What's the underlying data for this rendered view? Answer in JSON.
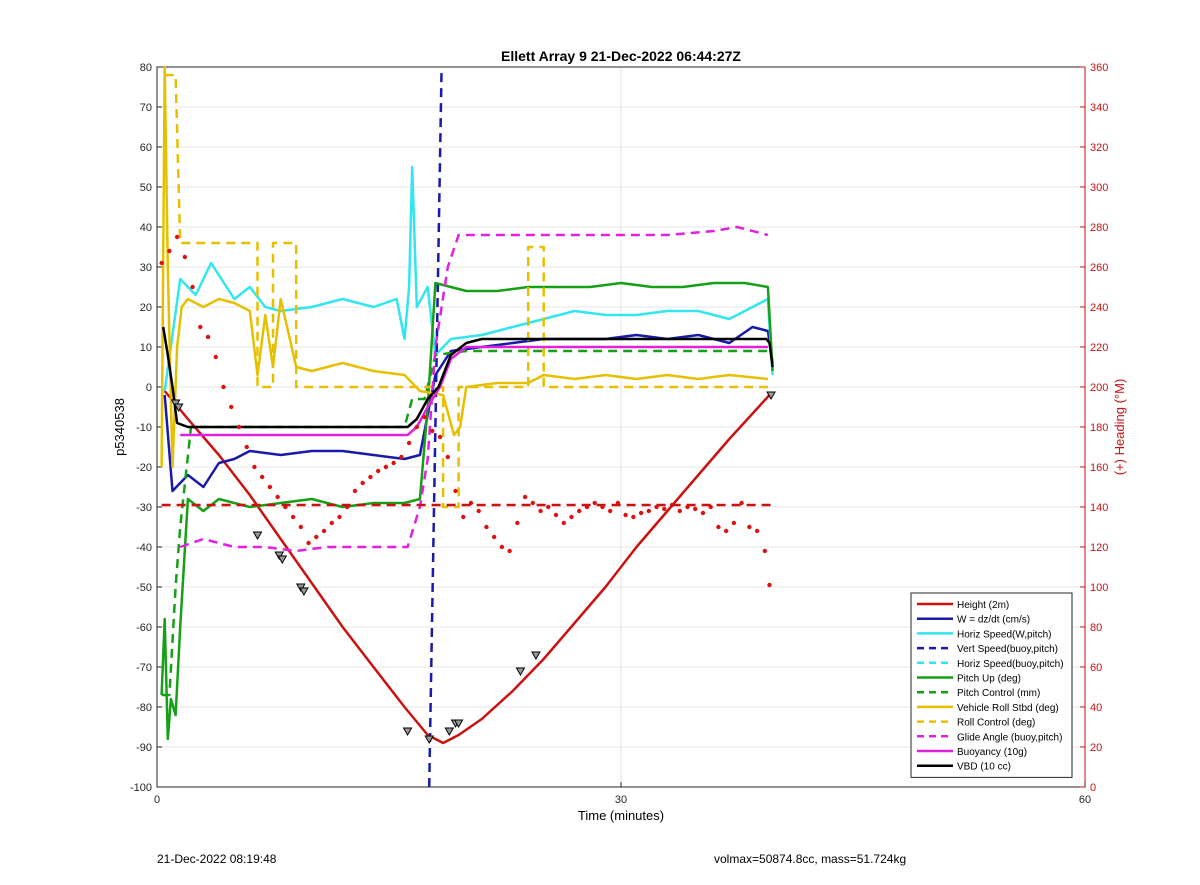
{
  "chart_data": {
    "type": "line",
    "title": "Ellett Array 9 21-Dec-2022 06:44:27Z",
    "xlabel": "Time (minutes)",
    "ylabel": "p5340538",
    "y2label": "(+) Heading (°M)",
    "xlim": [
      0,
      60
    ],
    "ylim": [
      -100,
      80
    ],
    "y2lim": [
      0,
      360
    ],
    "x_ticks": [
      "0",
      "30",
      "60"
    ],
    "y_ticks": [
      "-100",
      "-90",
      "-80",
      "-70",
      "-60",
      "-50",
      "-40",
      "-30",
      "-20",
      "-10",
      "0",
      "10",
      "20",
      "30",
      "40",
      "50",
      "60",
      "70",
      "80"
    ],
    "y2_ticks": [
      "0",
      "20",
      "40",
      "60",
      "80",
      "100",
      "120",
      "140",
      "160",
      "180",
      "200",
      "220",
      "240",
      "260",
      "280",
      "300",
      "320",
      "340",
      "360"
    ],
    "grid": true,
    "legend_position": "bottom-right",
    "series": [
      {
        "name": "Height (2m)",
        "color": "#cc1111",
        "style": "solid",
        "x": [
          0.5,
          2,
          4,
          6,
          8,
          10,
          12,
          14,
          16,
          17.5,
          18.5,
          19.5,
          21,
          23,
          25,
          27,
          29,
          31,
          33,
          35,
          37,
          39.6
        ],
        "y": [
          -1,
          -8,
          -17,
          -27,
          -38,
          -49,
          -60,
          -70,
          -80,
          -87,
          -89,
          -87,
          -83,
          -76,
          -68,
          -59,
          -50,
          -40,
          -31,
          -22,
          -13,
          -2
        ]
      },
      {
        "name": "W = dz/dt (cm/s)",
        "color": "#1a1aaa",
        "style": "solid",
        "x": [
          0.5,
          1,
          2,
          3,
          4,
          5,
          6,
          8,
          10,
          12,
          14,
          16,
          17,
          18,
          19,
          21,
          23,
          25,
          27,
          29,
          31,
          33,
          35,
          37,
          38.5,
          39.5,
          39.8
        ],
        "y": [
          -2,
          -26,
          -22,
          -25,
          -19,
          -18,
          -16,
          -17,
          -16,
          -16,
          -17,
          -18,
          -17,
          3,
          9,
          10,
          11,
          12,
          12,
          12,
          13,
          12,
          13,
          11,
          15,
          14,
          6
        ]
      },
      {
        "name": "Horiz Speed(W,pitch)",
        "color": "#33e5ee",
        "style": "solid",
        "x": [
          0.5,
          1.5,
          2.5,
          3.5,
          5,
          6,
          7,
          8,
          10,
          12,
          14,
          15.5,
          16,
          16.3,
          16.5,
          16.8,
          17.5,
          18,
          19,
          21,
          23,
          25,
          27,
          29,
          31,
          33,
          35,
          37,
          38.5,
          39.5,
          39.8
        ],
        "y": [
          -1,
          27,
          23,
          31,
          22,
          25,
          20,
          19,
          20,
          22,
          20,
          22,
          12,
          25,
          55,
          20,
          25,
          8,
          12,
          13,
          15,
          17,
          19,
          18,
          18,
          19,
          19,
          17,
          20,
          22,
          3
        ]
      },
      {
        "name": "Vert Speed(buoy,pitch)",
        "color": "#1a1aaa",
        "style": "dashed",
        "x": [
          17.6,
          18.4
        ],
        "y": [
          -100,
          80
        ]
      },
      {
        "name": "Horiz Speed(buoy,pitch)",
        "color": "#33e5ee",
        "style": "dashed",
        "x": [],
        "y": []
      },
      {
        "name": "Pitch Up (deg)",
        "color": "#16a016",
        "style": "solid",
        "x": [
          0.3,
          0.5,
          0.7,
          0.9,
          1.2,
          1.5,
          2,
          3,
          4,
          6,
          8,
          10,
          12,
          14,
          16,
          17,
          17.5,
          18,
          20,
          22,
          24,
          26,
          28,
          30,
          32,
          34,
          36,
          38,
          39.5,
          39.8
        ],
        "y": [
          -77,
          -58,
          -88,
          -78,
          -82,
          -60,
          -28,
          -31,
          -28,
          -30,
          -29,
          -28,
          -30,
          -29,
          -29,
          -28,
          -5,
          26,
          24,
          24,
          25,
          25,
          25,
          26,
          25,
          25,
          26,
          26,
          25,
          4
        ]
      },
      {
        "name": "Pitch Control (mm)",
        "color": "#16a016",
        "style": "dashed",
        "x": [
          0.3,
          0.8,
          1.2,
          1.5,
          2.2,
          4,
          8,
          12,
          16,
          16.5,
          17.3,
          18,
          20,
          25,
          30,
          35,
          39.5
        ],
        "y": [
          -77,
          -77,
          -50,
          -35,
          -10,
          -10,
          -10,
          -10,
          -10,
          -3,
          -3,
          8,
          9,
          9,
          9,
          9,
          9
        ]
      },
      {
        "name": "Vehicle Roll Stbd (deg)",
        "color": "#e6c000",
        "style": "solid",
        "x": [
          0.3,
          0.5,
          0.7,
          1,
          1.3,
          1.6,
          2,
          3,
          4,
          5,
          6,
          6.5,
          7,
          7.5,
          8,
          9,
          10,
          12,
          14,
          16,
          17,
          18.5,
          19.2,
          19.6,
          20,
          22,
          24,
          25,
          27,
          29,
          31,
          33,
          35,
          37,
          39.5
        ],
        "y": [
          -20,
          80,
          30,
          -20,
          10,
          20,
          22,
          20,
          22,
          21,
          19,
          3,
          18,
          5,
          22,
          5,
          4,
          6,
          4,
          3,
          -1,
          -2,
          -12,
          -10,
          0,
          1,
          1,
          3,
          2,
          3,
          2,
          3,
          2,
          3,
          2
        ]
      },
      {
        "name": "Roll Control (deg)",
        "color": "#e6c000",
        "style": "dashed",
        "x": [
          0.5,
          1.2,
          1.5,
          6.5,
          6.5,
          7.5,
          7.5,
          9,
          9,
          14,
          16,
          18.5,
          18.5,
          19.5,
          19.5,
          24,
          24,
          25,
          25,
          35,
          39.5
        ],
        "y": [
          78,
          78,
          36,
          36,
          0,
          0,
          36,
          36,
          0,
          0,
          0,
          0,
          -30,
          -30,
          0,
          0,
          35,
          35,
          0,
          0,
          0
        ]
      },
      {
        "name": "Glide Angle (buoy,pitch)",
        "color": "#e022e0",
        "style": "dashed",
        "x": [
          1.5,
          3,
          5,
          7,
          9,
          11,
          13,
          15,
          16.2,
          17,
          17.5,
          18,
          18.8,
          19.5,
          21,
          24,
          27,
          30,
          33,
          36,
          37.5,
          39.5
        ],
        "y": [
          -40,
          -38,
          -40,
          -40,
          -41,
          -40,
          -40,
          -40,
          -40,
          -30,
          -18,
          10,
          30,
          38,
          38,
          38,
          38,
          38,
          38,
          39,
          40,
          38
        ]
      },
      {
        "name": "Buoyancy (10g)",
        "color": "#e022e0",
        "style": "solid",
        "x": [
          1.5,
          16.2,
          16.8,
          17.5,
          18.3,
          19,
          20,
          39.5
        ],
        "y": [
          -12,
          -12,
          -10,
          -5,
          0,
          7,
          10,
          10
        ]
      },
      {
        "name": "VBD (10 cc)",
        "color": "#000000",
        "style": "solid",
        "x": [
          0.4,
          0.7,
          1,
          1.3,
          2,
          16.2,
          16.8,
          17.5,
          18.2,
          19,
          20,
          21,
          30,
          39.4,
          39.6,
          39.8
        ],
        "y": [
          15,
          8,
          0,
          -9,
          -10,
          -10,
          -8,
          -3,
          0,
          8,
          11,
          12,
          12,
          12,
          11,
          5
        ]
      },
      {
        "name": "",
        "color": "#dd1111",
        "style": "points",
        "axis": "right",
        "x": [
          0.3,
          0.8,
          1.3,
          1.8,
          2.3,
          2.8,
          3.3,
          3.8,
          4.3,
          4.8,
          5.3,
          5.8,
          6.3,
          6.8,
          7.3,
          7.8,
          8.3,
          8.8,
          9.3,
          9.8,
          10.3,
          10.8,
          11.3,
          11.8,
          12.3,
          12.8,
          13.3,
          13.8,
          14.3,
          14.8,
          15.3,
          15.8,
          16.3,
          16.8,
          17.3,
          17.8,
          18.3,
          18.8,
          19.3,
          19.8,
          20.3,
          20.8,
          21.3,
          21.8,
          22.3,
          22.8,
          23.3,
          23.8,
          24.3,
          24.8,
          25.3,
          25.8,
          26.3,
          26.8,
          27.3,
          27.8,
          28.3,
          28.8,
          29.3,
          29.8,
          30.3,
          30.8,
          31.3,
          31.8,
          32.3,
          32.8,
          33.3,
          33.8,
          34.3,
          34.8,
          35.3,
          35.8,
          36.3,
          36.8,
          37.3,
          37.8,
          38.3,
          38.8,
          39.3,
          39.6
        ],
        "y": [
          262,
          268,
          275,
          265,
          250,
          230,
          225,
          215,
          200,
          190,
          180,
          170,
          160,
          155,
          150,
          145,
          140,
          135,
          130,
          122,
          125,
          128,
          132,
          135,
          140,
          148,
          152,
          155,
          158,
          160,
          162,
          165,
          172,
          180,
          185,
          178,
          175,
          165,
          148,
          135,
          142,
          138,
          130,
          125,
          120,
          118,
          132,
          145,
          142,
          138,
          140,
          136,
          132,
          135,
          138,
          140,
          142,
          140,
          138,
          142,
          136,
          135,
          137,
          138,
          140,
          139,
          141,
          138,
          140,
          139,
          137,
          140,
          130,
          128,
          132,
          142,
          130,
          128,
          118,
          101
        ]
      },
      {
        "name": "",
        "color": "#cc1111",
        "style": "dashed",
        "axis": "right",
        "x": [
          0.3,
          39.8
        ],
        "y": [
          141,
          141
        ]
      }
    ],
    "markers": {
      "description": "triangle markers on Height series",
      "x": [
        1.2,
        1.4,
        6.5,
        7.9,
        8.1,
        9.3,
        9.5,
        16.2,
        17.6,
        18.9,
        19.3,
        19.5,
        23.5,
        24.5,
        39.7
      ],
      "y": [
        -4,
        -5,
        -37,
        -42,
        -43,
        -50,
        -51,
        -86,
        -88,
        -86,
        -84,
        -84,
        -71,
        -67,
        -2
      ]
    }
  },
  "footer": {
    "left": "21-Dec-2022 08:19:48",
    "right": "volmax=50874.8cc, mass=51.724kg"
  }
}
